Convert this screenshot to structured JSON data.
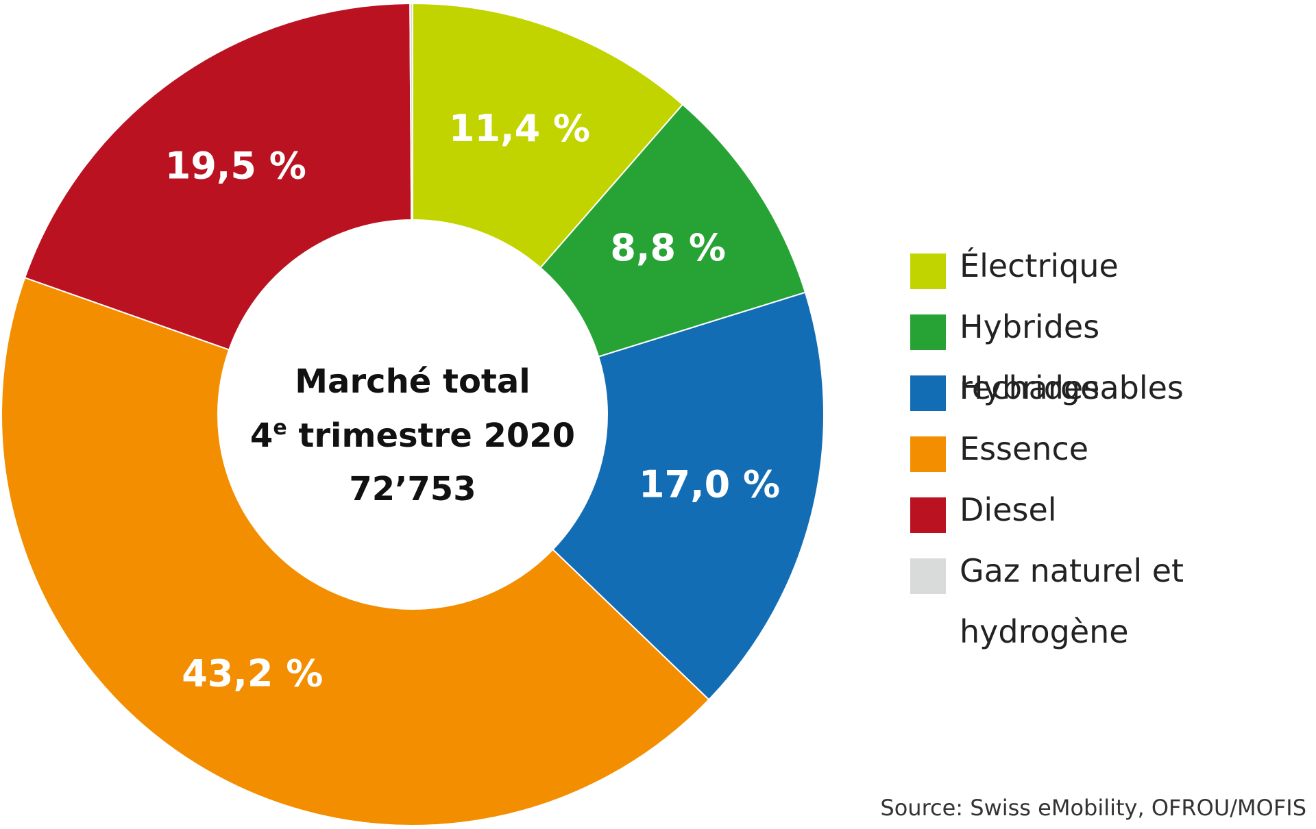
{
  "chart_data": {
    "type": "pie",
    "center_title_line1": "Marché total",
    "center_title_line2_number": "4",
    "center_title_line2_sup": "e",
    "center_title_line2_rest": " trimestre 2020",
    "center_total": "72’753",
    "slices": [
      {
        "name": "Électrique",
        "value": 11.4,
        "label": "11,4 %",
        "color": "#c2d400"
      },
      {
        "name": "Hybrides rechargeables",
        "value": 8.8,
        "label": "8,8 %",
        "color": "#27a335"
      },
      {
        "name": "Hybrides",
        "value": 17.0,
        "label": "17,0 %",
        "color": "#136db5"
      },
      {
        "name": "Essence",
        "value": 43.2,
        "label": "43,2 %",
        "color": "#f28e00"
      },
      {
        "name": "Diesel",
        "value": 19.5,
        "label": "19,5 %",
        "color": "#bb1221"
      },
      {
        "name": "Gaz naturel et hydrogène",
        "value": 0.1,
        "label": "",
        "color": "#d9dbdb"
      }
    ],
    "legend_placement": "right",
    "source": "Source: Swiss eMobility, OFROU/MOFIS"
  }
}
